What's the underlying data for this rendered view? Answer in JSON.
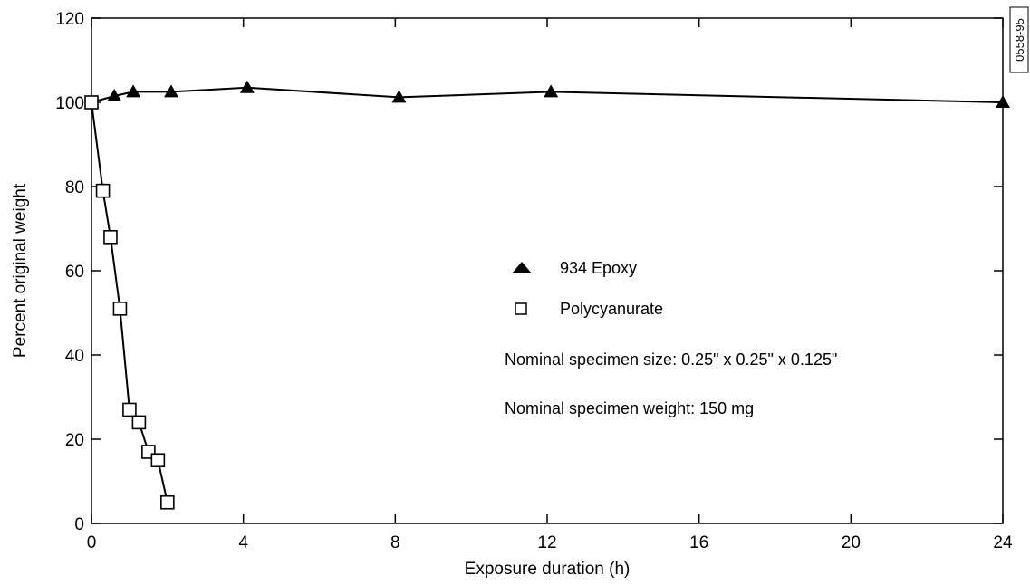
{
  "figure_id": "0558-95",
  "chart_data": {
    "type": "line",
    "xlabel": "Exposure duration (h)",
    "ylabel": "Percent original weight",
    "xlim": [
      0,
      24
    ],
    "ylim": [
      0,
      120
    ],
    "xticks": [
      0,
      4,
      8,
      12,
      16,
      20,
      24
    ],
    "yticks": [
      0,
      20,
      40,
      60,
      80,
      100,
      120
    ],
    "grid": false,
    "legend_position": "center-right",
    "series": [
      {
        "name": "934 Epoxy",
        "marker": "filled-triangle",
        "color": "#000000",
        "x": [
          0,
          0.6,
          1.1,
          2.1,
          4.1,
          8.1,
          12.1,
          24
        ],
        "y": [
          100,
          101.5,
          102.5,
          102.5,
          103.5,
          101.2,
          102.5,
          100
        ]
      },
      {
        "name": "Polycyanurate",
        "marker": "open-square",
        "color": "#000000",
        "x": [
          0,
          0.3,
          0.5,
          0.75,
          1.0,
          1.25,
          1.5,
          1.75,
          2.0
        ],
        "y": [
          100,
          79,
          68,
          51,
          27,
          24,
          17,
          15,
          5
        ]
      }
    ],
    "annotations": [
      "Nominal specimen size: 0.25\" x 0.25\" x 0.125\"",
      "Nominal specimen weight: 150 mg"
    ]
  }
}
